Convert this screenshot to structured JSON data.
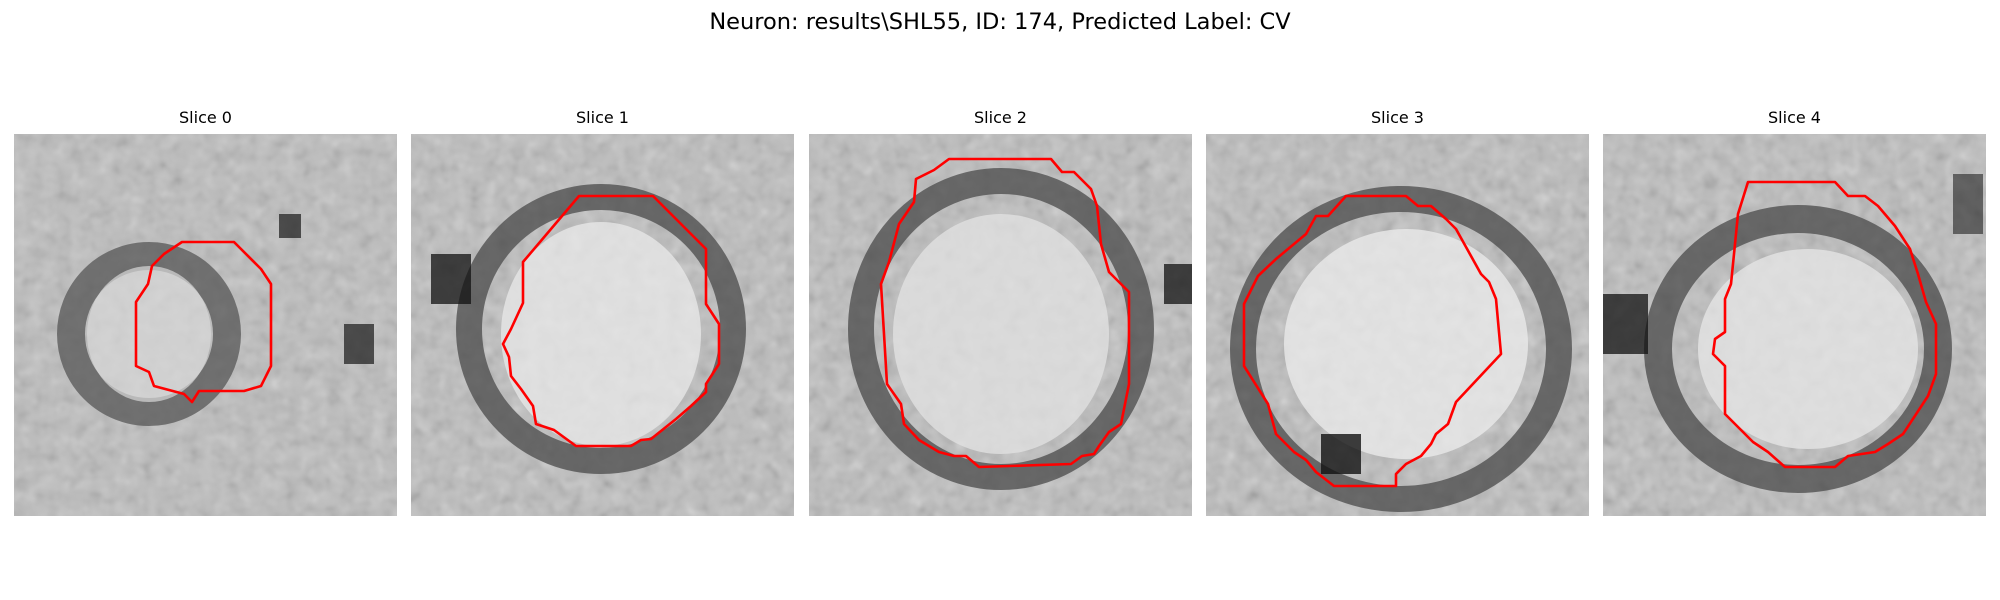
{
  "figure": {
    "title": "Neuron: results\\SHL55, ID: 174, Predicted Label: CV",
    "contour_color": "#ff0000"
  },
  "panels": [
    {
      "title": "Slice 0"
    },
    {
      "title": "Slice 1"
    },
    {
      "title": "Slice 2"
    },
    {
      "title": "Slice 3"
    },
    {
      "title": "Slice 4"
    }
  ]
}
